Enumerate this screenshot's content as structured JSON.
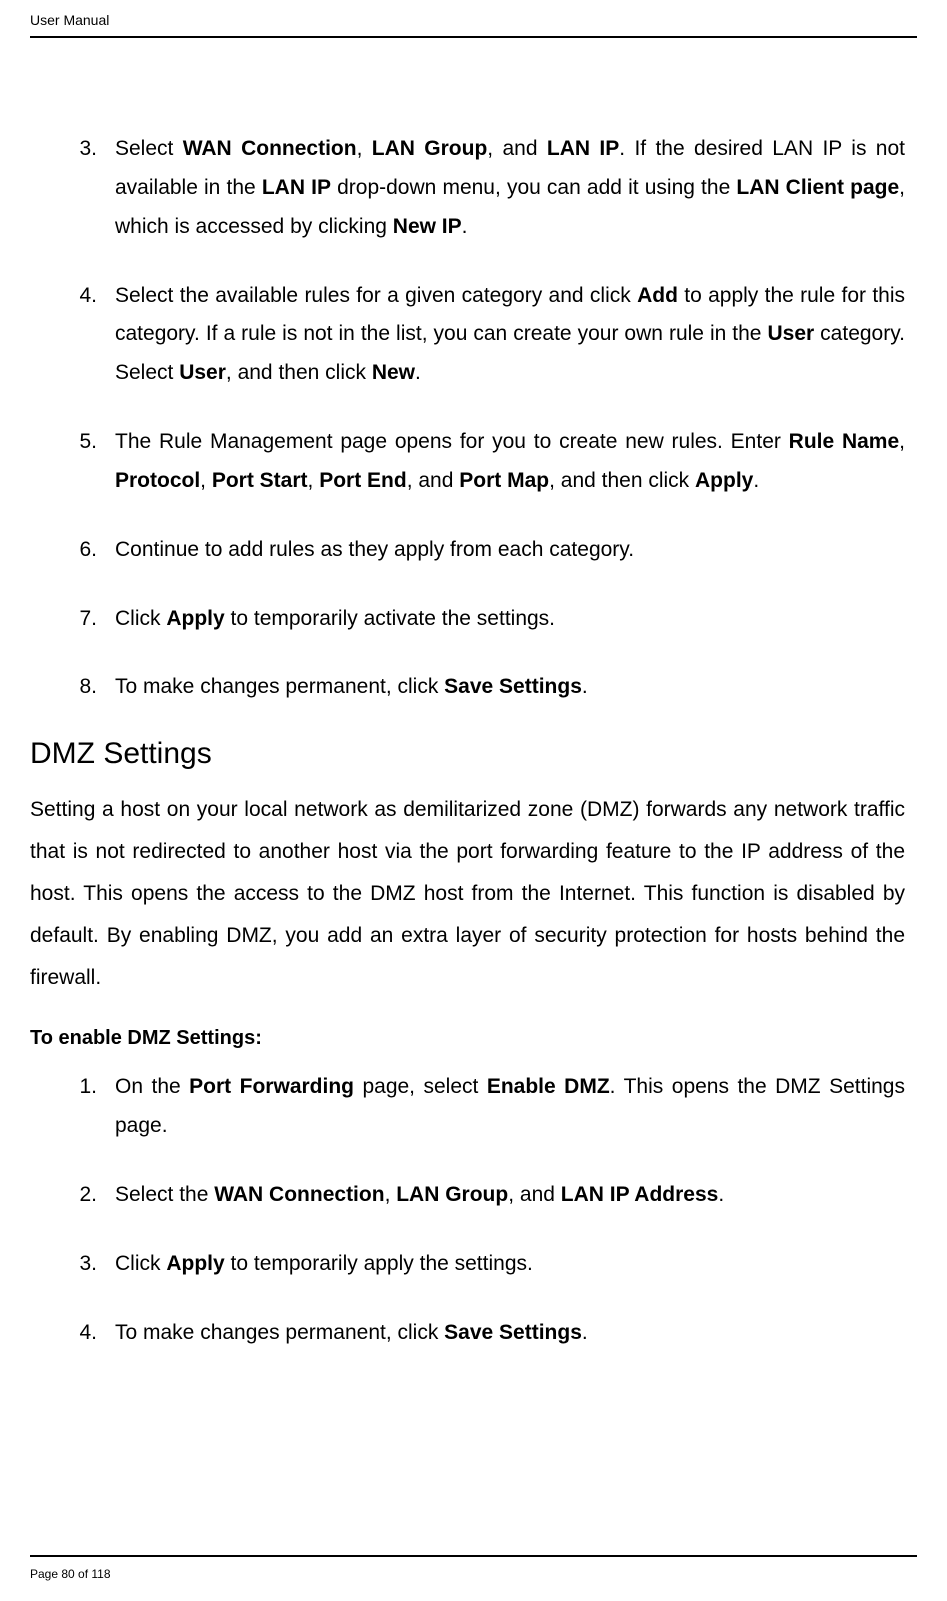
{
  "header": {
    "title": "User Manual"
  },
  "list1": [
    {
      "num": "3.",
      "segments": [
        {
          "t": "Select ",
          "b": false
        },
        {
          "t": "WAN Connection",
          "b": true
        },
        {
          "t": ", ",
          "b": false
        },
        {
          "t": "LAN Group",
          "b": true
        },
        {
          "t": ", and ",
          "b": false
        },
        {
          "t": "LAN IP",
          "b": true
        },
        {
          "t": ". If the desired LAN IP is not available in the ",
          "b": false
        },
        {
          "t": "LAN IP",
          "b": true
        },
        {
          "t": " drop-down menu, you can add it using the ",
          "b": false
        },
        {
          "t": "LAN Client page",
          "b": true
        },
        {
          "t": ", which is accessed by clicking ",
          "b": false
        },
        {
          "t": "New IP",
          "b": true
        },
        {
          "t": ".",
          "b": false
        }
      ]
    },
    {
      "num": "4.",
      "segments": [
        {
          "t": "Select the available rules for a given category and click ",
          "b": false
        },
        {
          "t": "Add",
          "b": true
        },
        {
          "t": " to apply the rule for this category. If a rule is not in the list, you can create your own rule in the ",
          "b": false
        },
        {
          "t": "User",
          "b": true
        },
        {
          "t": " category. Select ",
          "b": false
        },
        {
          "t": "User",
          "b": true
        },
        {
          "t": ", and then click ",
          "b": false
        },
        {
          "t": "New",
          "b": true
        },
        {
          "t": ".",
          "b": false
        }
      ]
    },
    {
      "num": "5.",
      "segments": [
        {
          "t": "The Rule Management page opens for you to create new rules. Enter ",
          "b": false
        },
        {
          "t": "Rule Name",
          "b": true
        },
        {
          "t": ", ",
          "b": false
        },
        {
          "t": "Protocol",
          "b": true
        },
        {
          "t": ", ",
          "b": false
        },
        {
          "t": "Port Start",
          "b": true
        },
        {
          "t": ", ",
          "b": false
        },
        {
          "t": "Port End",
          "b": true
        },
        {
          "t": ", and ",
          "b": false
        },
        {
          "t": "Port Map",
          "b": true
        },
        {
          "t": ", and then click ",
          "b": false
        },
        {
          "t": "Apply",
          "b": true
        },
        {
          "t": ".",
          "b": false
        }
      ]
    },
    {
      "num": "6.",
      "segments": [
        {
          "t": "Continue to add rules as they apply from each category.",
          "b": false
        }
      ]
    },
    {
      "num": "7.",
      "segments": [
        {
          "t": "Click ",
          "b": false
        },
        {
          "t": "Apply",
          "b": true
        },
        {
          "t": " to temporarily activate the settings.",
          "b": false
        }
      ]
    },
    {
      "num": "8.",
      "segments": [
        {
          "t": "To make changes permanent, click ",
          "b": false
        },
        {
          "t": "Save Settings",
          "b": true
        },
        {
          "t": ".",
          "b": false
        }
      ]
    }
  ],
  "section": {
    "heading": "DMZ Settings"
  },
  "body_para": "Setting a host on your local network as demilitarized zone (DMZ) forwards any network traffic that is not redirected to another host via the port forwarding feature to the IP address of the host. This opens the access to the DMZ host from the Internet. This function is disabled by default. By enabling DMZ, you add an extra layer of security protection for hosts behind the firewall.",
  "subheading": "To enable DMZ Settings:",
  "list2": [
    {
      "num": "1.",
      "segments": [
        {
          "t": "On the ",
          "b": false
        },
        {
          "t": "Port Forwarding",
          "b": true
        },
        {
          "t": " page, select ",
          "b": false
        },
        {
          "t": "Enable DMZ",
          "b": true
        },
        {
          "t": ". This opens the DMZ Settings page.",
          "b": false
        }
      ]
    },
    {
      "num": "2.",
      "segments": [
        {
          "t": "Select the ",
          "b": false
        },
        {
          "t": "WAN Connection",
          "b": true
        },
        {
          "t": ", ",
          "b": false
        },
        {
          "t": "LAN Group",
          "b": true
        },
        {
          "t": ", and ",
          "b": false
        },
        {
          "t": "LAN IP Address",
          "b": true
        },
        {
          "t": ".",
          "b": false
        }
      ]
    },
    {
      "num": "3.",
      "segments": [
        {
          "t": "Click ",
          "b": false
        },
        {
          "t": "Apply",
          "b": true
        },
        {
          "t": " to temporarily apply the settings.",
          "b": false
        }
      ]
    },
    {
      "num": "4.",
      "segments": [
        {
          "t": "To make changes permanent, click ",
          "b": false
        },
        {
          "t": "Save Settings",
          "b": true
        },
        {
          "t": ".",
          "b": false
        }
      ]
    }
  ],
  "footer": {
    "text": "Page 80 of 118"
  }
}
